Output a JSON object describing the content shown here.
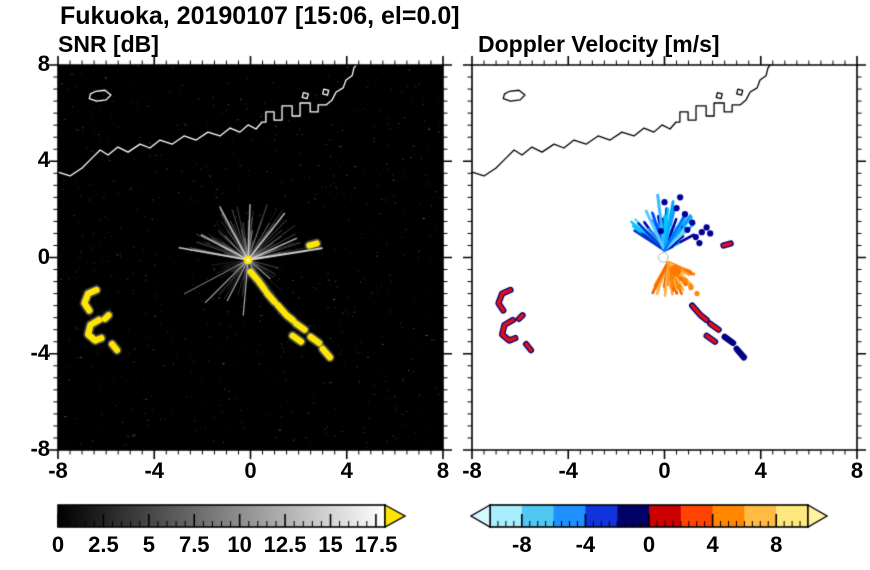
{
  "header": {
    "title": "Fukuoka, 20190107 [15:06, el=0.0]"
  },
  "panels": {
    "snr": {
      "title": "SNR [dB]"
    },
    "doppler": {
      "title": "Doppler Velocity [m/s]"
    }
  },
  "axes": {
    "xlim": [
      -8,
      8
    ],
    "ylim": [
      -8,
      8
    ],
    "major_ticks": [
      -8,
      -4,
      0,
      4,
      8
    ],
    "minor_tick_step": 0.5,
    "x_tick_labels": [
      "-8",
      "-4",
      "0",
      "4",
      "8"
    ],
    "y_tick_labels": [
      "8",
      "4",
      "0",
      "-4",
      "-8"
    ]
  },
  "geography": {
    "coastline": [
      [
        -8.0,
        3.55
      ],
      [
        -7.5,
        3.39
      ],
      [
        -7.0,
        3.72
      ],
      [
        -6.59,
        4.13
      ],
      [
        -6.25,
        4.47
      ],
      [
        -5.92,
        4.26
      ],
      [
        -5.51,
        4.59
      ],
      [
        -5.09,
        4.38
      ],
      [
        -4.59,
        4.71
      ],
      [
        -4.18,
        4.55
      ],
      [
        -3.76,
        4.88
      ],
      [
        -3.26,
        4.71
      ],
      [
        -2.76,
        5.05
      ],
      [
        -2.26,
        4.88
      ],
      [
        -1.77,
        5.21
      ],
      [
        -1.27,
        5.05
      ],
      [
        -0.85,
        5.38
      ],
      [
        -0.44,
        5.21
      ],
      [
        -0.1,
        5.51
      ],
      [
        0.23,
        5.34
      ],
      [
        0.48,
        5.63
      ],
      [
        0.64,
        5.63
      ],
      [
        0.64,
        6.05
      ],
      [
        0.98,
        6.05
      ],
      [
        0.98,
        5.71
      ],
      [
        1.31,
        5.71
      ],
      [
        1.31,
        6.3
      ],
      [
        1.73,
        6.3
      ],
      [
        1.73,
        5.88
      ],
      [
        2.06,
        5.88
      ],
      [
        2.06,
        6.42
      ],
      [
        2.48,
        6.42
      ],
      [
        2.48,
        6.05
      ],
      [
        2.81,
        6.05
      ],
      [
        2.81,
        6.34
      ],
      [
        3.14,
        6.34
      ],
      [
        3.39,
        6.55
      ],
      [
        3.56,
        6.88
      ],
      [
        3.85,
        7.05
      ],
      [
        3.97,
        7.38
      ],
      [
        4.22,
        7.55
      ],
      [
        4.3,
        7.88
      ],
      [
        4.39,
        8.0
      ]
    ],
    "island": [
      [
        -6.7,
        6.6
      ],
      [
        -6.4,
        6.5
      ],
      [
        -6.0,
        6.55
      ],
      [
        -5.8,
        6.75
      ],
      [
        -6.05,
        6.95
      ],
      [
        -6.45,
        6.9
      ],
      [
        -6.65,
        6.8
      ]
    ],
    "islets": [
      [
        [
          3.0,
          6.8
        ],
        [
          3.2,
          6.75
        ],
        [
          3.25,
          6.95
        ],
        [
          3.05,
          7.0
        ]
      ],
      [
        [
          2.15,
          6.65
        ],
        [
          2.35,
          6.6
        ],
        [
          2.4,
          6.8
        ],
        [
          2.2,
          6.85
        ]
      ]
    ]
  },
  "chart_data": [
    {
      "type": "heatmap",
      "name": "snr",
      "title": "SNR [dB]",
      "units": "dB",
      "xlim": [
        -8,
        8
      ],
      "ylim": [
        -8,
        8
      ],
      "background": "#000000",
      "coast_color": "#ffffff",
      "colorbar": {
        "range": [
          0,
          18
        ],
        "label_values": [
          0,
          2.5,
          5,
          7.5,
          10,
          12.5,
          15,
          17.5
        ],
        "labels": [
          "0",
          "2.5",
          "5",
          "7.5",
          "10",
          "12.5",
          "15",
          "17.5"
        ],
        "minor_tick_step": 0.5,
        "gradient_stops": [
          "#000000",
          "#ffffff"
        ],
        "over_arrow_color": "#ffe600"
      },
      "features": {
        "noise": {
          "seed": 11,
          "count": 1100,
          "colors": [
            "#161616",
            "#242424",
            "#383838",
            "#4e4e4e",
            "#6a6a6a"
          ]
        },
        "radar_center": [
          -0.1,
          -0.1
        ],
        "fans": [
          {
            "seed": 3,
            "count": 95,
            "angle_range": [
              8,
              172
            ],
            "len_range": [
              0.5,
              2.5
            ],
            "alpha_range": [
              0.12,
              0.5
            ],
            "color": "#b4b4b4"
          },
          {
            "seed": 8,
            "count": 50,
            "angle_range": [
              188,
              352
            ],
            "len_range": [
              0.4,
              1.9
            ],
            "alpha_range": [
              0.1,
              0.4
            ],
            "color": "#9c9c9c"
          }
        ],
        "bright_rays": [
          {
            "angle": 9,
            "len": 3.1,
            "width": 2.0,
            "color": "#e6e6e6"
          },
          {
            "angle": 24,
            "len": 2.2,
            "width": 1.4,
            "color": "#cfcfcf"
          },
          {
            "angle": 52,
            "len": 2.45,
            "width": 1.4,
            "color": "#d4d4d4"
          },
          {
            "angle": 88,
            "len": 2.3,
            "width": 1.4,
            "color": "#cccccc"
          },
          {
            "angle": 118,
            "len": 2.5,
            "width": 1.4,
            "color": "#d0d0d0"
          },
          {
            "angle": 152,
            "len": 2.2,
            "width": 1.4,
            "color": "#c8c8c8"
          },
          {
            "angle": 170,
            "len": 2.9,
            "width": 1.6,
            "color": "#dcdcdc"
          },
          {
            "angle": 208,
            "len": 3.0,
            "width": 1.0,
            "color": "#999999"
          },
          {
            "angle": 225,
            "len": 2.5,
            "width": 1.2,
            "color": "#bbbbbb"
          },
          {
            "angle": 243,
            "len": 1.9,
            "width": 1.2,
            "color": "#b0b0b0"
          },
          {
            "angle": 265,
            "len": 2.3,
            "width": 1.2,
            "color": "#c2c2c2"
          },
          {
            "angle": 297,
            "len": 1.5,
            "width": 1.1,
            "color": "#a8a8a8"
          },
          {
            "angle": 320,
            "len": 1.2,
            "width": 1.1,
            "color": "#a0a0a0"
          }
        ],
        "center_dot": {
          "pos": [
            -0.1,
            -0.1
          ],
          "radius": 0.18,
          "color": "#ffe600"
        },
        "echo_color": "#ffe600",
        "echo_halo": "#8a8a8a",
        "echo_width": 0.26,
        "echoes": [
          [
            [
              -6.4,
              -1.35
            ],
            [
              -6.75,
              -1.5
            ],
            [
              -6.9,
              -1.9
            ],
            [
              -6.7,
              -2.2
            ]
          ],
          [
            [
              -6.3,
              -2.6
            ],
            [
              -6.65,
              -2.8
            ],
            [
              -6.75,
              -3.2
            ],
            [
              -6.45,
              -3.45
            ],
            [
              -6.2,
              -3.35
            ]
          ],
          [
            [
              -5.9,
              -2.4
            ],
            [
              -6.05,
              -2.55
            ]
          ],
          [
            [
              -5.75,
              -3.6
            ],
            [
              -5.55,
              -3.85
            ]
          ],
          [
            [
              0.0,
              -0.6
            ],
            [
              0.35,
              -1.0
            ],
            [
              0.6,
              -1.35
            ]
          ],
          [
            [
              0.7,
              -1.5
            ],
            [
              1.0,
              -1.85
            ]
          ],
          [
            [
              1.15,
              -2.0
            ],
            [
              1.5,
              -2.4
            ],
            [
              1.75,
              -2.6
            ]
          ],
          [
            [
              1.9,
              -2.75
            ],
            [
              2.25,
              -3.0
            ]
          ],
          [
            [
              1.75,
              -3.25
            ],
            [
              2.1,
              -3.5
            ]
          ],
          [
            [
              2.5,
              -3.3
            ],
            [
              2.85,
              -3.55
            ]
          ],
          [
            [
              3.0,
              -3.8
            ],
            [
              3.3,
              -4.15
            ]
          ],
          [
            [
              2.45,
              0.5
            ],
            [
              2.75,
              0.58
            ]
          ]
        ]
      }
    },
    {
      "type": "heatmap",
      "name": "doppler_velocity",
      "title": "Doppler Velocity [m/s]",
      "units": "m/s",
      "xlim": [
        -8,
        8
      ],
      "ylim": [
        -8,
        8
      ],
      "background": "#ffffff",
      "coast_color": "#000000",
      "colorbar": {
        "range": [
          -10,
          10
        ],
        "label_values": [
          -8,
          -4,
          0,
          4,
          8
        ],
        "labels": [
          "-8",
          "-4",
          "0",
          "4",
          "8"
        ],
        "minor_tick_step": 0.5,
        "segment_colors": [
          "#a8eeff",
          "#4fc7f2",
          "#1e90ff",
          "#1133dd",
          "#000066",
          "#cc0000",
          "#ff4400",
          "#ff8800",
          "#ffbb44",
          "#ffe87d"
        ],
        "under_arrow_color": "#d5f8ff",
        "over_arrow_color": "#fff3a0"
      },
      "features": {
        "negative_fan": {
          "seed": 9,
          "center": [
            0.0,
            0.3
          ],
          "count": 62,
          "angle_range": [
            15,
            150
          ],
          "len_range": [
            0.35,
            1.9
          ],
          "width": 2.6,
          "palette": [
            "#00c8ff",
            "#1e90ff",
            "#0055ff",
            "#0000aa",
            "#66d9ff",
            "#0033cc"
          ]
        },
        "negative_long_streaks": [
          {
            "angle": 97,
            "len": 2.3,
            "width": 3,
            "color": "#33bbff"
          },
          {
            "angle": 80,
            "len": 2.05,
            "width": 3,
            "color": "#00aaff"
          },
          {
            "angle": 115,
            "len": 1.8,
            "width": 3,
            "color": "#55ccff"
          },
          {
            "angle": 60,
            "len": 1.6,
            "width": 3,
            "color": "#0077ff"
          }
        ],
        "negative_blobs": {
          "color": "#000099",
          "radius": 0.13,
          "points": [
            [
              1.3,
              0.85
            ],
            [
              1.55,
              1.05
            ],
            [
              1.75,
              1.25
            ],
            [
              1.15,
              1.45
            ],
            [
              0.85,
              1.8
            ],
            [
              0.5,
              2.05
            ],
            [
              1.45,
              0.6
            ],
            [
              -0.15,
              1.1
            ],
            [
              0.95,
              1.15
            ],
            [
              0.0,
              2.3
            ],
            [
              0.65,
              2.5
            ],
            [
              1.9,
              1.0
            ]
          ]
        },
        "positive_fan": {
          "seed": 4,
          "center": [
            0.15,
            -0.2
          ],
          "count": 50,
          "angle_range": [
            235,
            340
          ],
          "len_range": [
            0.3,
            1.45
          ],
          "width": 2.6,
          "palette": [
            "#ff8800",
            "#ff6600",
            "#ffa033",
            "#ee5500",
            "#ffb347"
          ]
        },
        "positive_core": {
          "pos": [
            0.45,
            -0.55
          ],
          "radius": 0.24,
          "color": "#ff7700"
        },
        "positive_blobs": {
          "color": "#ff8800",
          "radius": 0.11,
          "points": [
            [
              0.85,
              -0.95
            ],
            [
              1.1,
              -1.25
            ],
            [
              1.35,
              -1.5
            ],
            [
              0.6,
              -1.2
            ],
            [
              0.3,
              -0.85
            ]
          ]
        },
        "center_gap": {
          "pos": [
            -0.05,
            0.0
          ],
          "radius": 0.2
        },
        "echo_primary": "#dd1111",
        "echo_secondary": "#000080",
        "echo_width": 0.26,
        "echo_seed": 6,
        "echoes": [
          [
            [
              -6.4,
              -1.35
            ],
            [
              -6.75,
              -1.5
            ],
            [
              -6.9,
              -1.9
            ],
            [
              -6.7,
              -2.2
            ]
          ],
          [
            [
              -6.3,
              -2.6
            ],
            [
              -6.65,
              -2.8
            ],
            [
              -6.75,
              -3.2
            ],
            [
              -6.45,
              -3.45
            ],
            [
              -6.2,
              -3.35
            ]
          ],
          [
            [
              -5.9,
              -2.4
            ],
            [
              -6.05,
              -2.55
            ]
          ],
          [
            [
              -5.75,
              -3.6
            ],
            [
              -5.55,
              -3.85
            ]
          ],
          [
            [
              1.15,
              -2.0
            ],
            [
              1.5,
              -2.4
            ],
            [
              1.75,
              -2.6
            ]
          ],
          [
            [
              1.9,
              -2.75
            ],
            [
              2.25,
              -3.0
            ]
          ],
          [
            [
              1.75,
              -3.25
            ],
            [
              2.1,
              -3.5
            ]
          ],
          [
            [
              2.5,
              -3.3
            ],
            [
              2.85,
              -3.55
            ]
          ],
          [
            [
              3.0,
              -3.8
            ],
            [
              3.3,
              -4.15
            ]
          ],
          [
            [
              2.45,
              0.5
            ],
            [
              2.75,
              0.58
            ]
          ]
        ]
      }
    }
  ]
}
